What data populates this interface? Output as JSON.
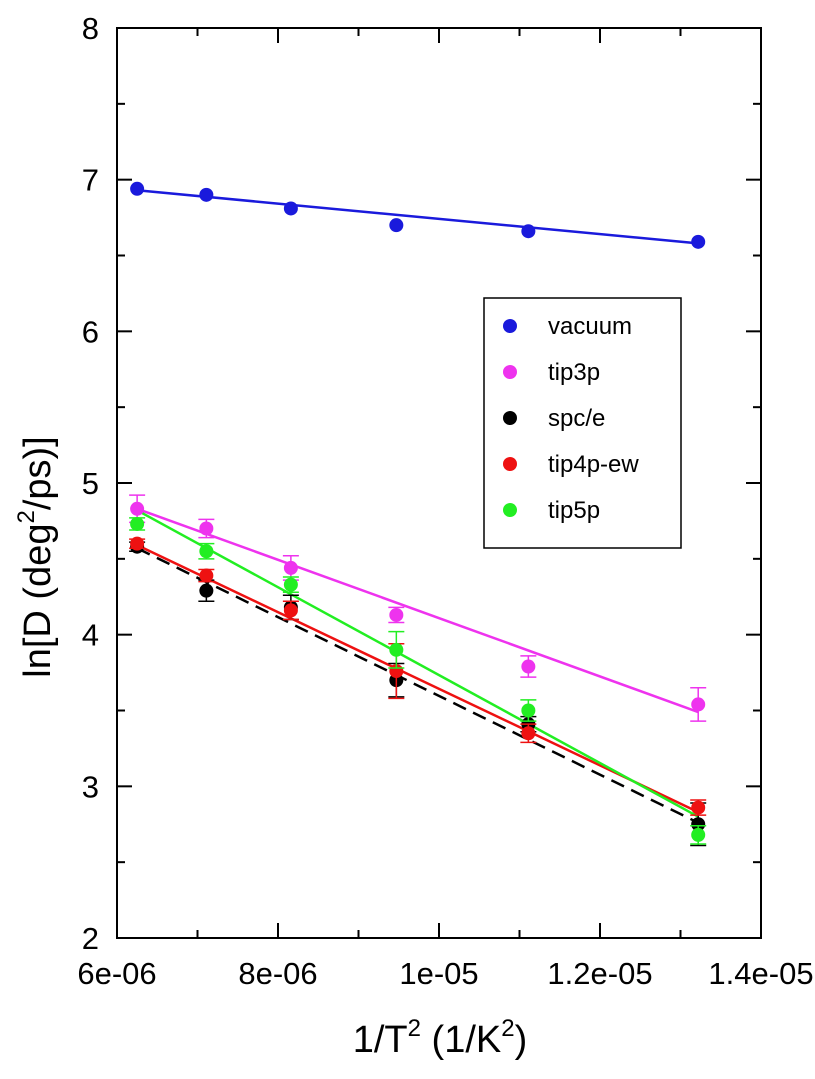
{
  "chart_data": {
    "type": "scatter",
    "xlabel": {
      "main": "1/T",
      "sup": "2",
      "rest": " (1/K",
      "sup2": "2",
      "close": ")"
    },
    "ylabel": {
      "main": "ln[D (deg",
      "sup": "2",
      "rest": "/ps)]"
    },
    "xlim": [
      6e-06,
      1.4e-05
    ],
    "ylim": [
      2,
      8
    ],
    "xticks": [
      {
        "value": 6e-06,
        "label": "6e-06"
      },
      {
        "value": 8e-06,
        "label": "8e-06"
      },
      {
        "value": 1e-05,
        "label": "1e-05"
      },
      {
        "value": 1.2e-05,
        "label": "1.2e-05"
      },
      {
        "value": 1.4e-05,
        "label": "1.4e-05"
      }
    ],
    "yticks": [
      {
        "value": 2,
        "label": "2"
      },
      {
        "value": 3,
        "label": "3"
      },
      {
        "value": 4,
        "label": "4"
      },
      {
        "value": 5,
        "label": "5"
      },
      {
        "value": 6,
        "label": "6"
      },
      {
        "value": 7,
        "label": "7"
      },
      {
        "value": 8,
        "label": "8"
      }
    ],
    "grid": false,
    "legend_position": "center-right",
    "x": [
      6.25e-06,
      7.11e-06,
      8.16e-06,
      9.47e-06,
      1.111e-05,
      1.322e-05
    ],
    "series": [
      {
        "name": "vacuum",
        "color": "#1a1adc",
        "values": [
          6.94,
          6.9,
          6.81,
          6.7,
          6.66,
          6.59
        ],
        "errors": [
          0,
          0,
          0,
          0,
          0,
          0
        ],
        "fit": {
          "x": [
            6.25e-06,
            1.322e-05
          ],
          "y": [
            6.93,
            6.58
          ],
          "dash": false
        }
      },
      {
        "name": "tip3p",
        "color": "#ee33ee",
        "values": [
          4.83,
          4.7,
          4.44,
          4.13,
          3.79,
          3.54
        ],
        "errors": [
          0.09,
          0.06,
          0.08,
          0.05,
          0.07,
          0.11
        ],
        "fit": {
          "x": [
            6.25e-06,
            1.322e-05
          ],
          "y": [
            4.83,
            3.49
          ],
          "dash": false
        }
      },
      {
        "name": "spc/e",
        "color": "#000000",
        "values": [
          4.58,
          4.29,
          4.18,
          3.7,
          3.41,
          2.75
        ],
        "errors": [
          0.03,
          0.07,
          0.08,
          0.11,
          0.05,
          0.14
        ],
        "fit": {
          "x": [
            6.25e-06,
            1.322e-05
          ],
          "y": [
            4.57,
            2.76
          ],
          "dash": true
        }
      },
      {
        "name": "tip4p-ew",
        "color": "#ee1111",
        "values": [
          4.6,
          4.39,
          4.16,
          3.76,
          3.35,
          2.86
        ],
        "errors": [
          0.03,
          0.04,
          0.06,
          0.18,
          0.06,
          0.05
        ],
        "fit": {
          "x": [
            6.25e-06,
            1.322e-05
          ],
          "y": [
            4.59,
            2.83
          ],
          "dash": false
        }
      },
      {
        "name": "tip5p",
        "color": "#22ee22",
        "values": [
          4.73,
          4.55,
          4.33,
          3.9,
          3.5,
          2.68
        ],
        "errors": [
          0.04,
          0.05,
          0.05,
          0.12,
          0.07,
          0.06
        ],
        "fit": {
          "x": [
            6.25e-06,
            1.322e-05
          ],
          "y": [
            4.82,
            2.8
          ],
          "dash": false
        }
      }
    ]
  }
}
